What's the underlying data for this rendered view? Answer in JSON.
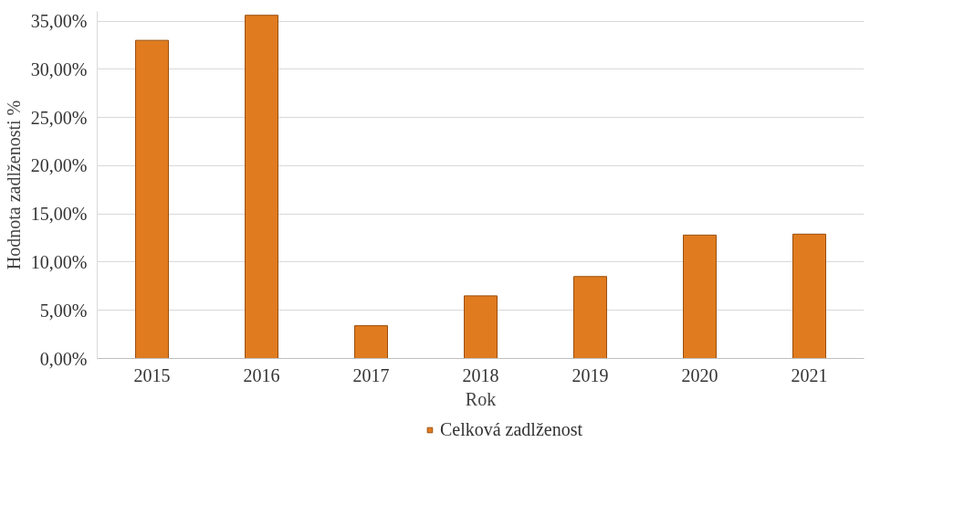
{
  "chart_data": {
    "type": "bar",
    "xlabel": "Rok",
    "ylabel": "Hodnota zadlženosti %",
    "categories": [
      "2015",
      "2016",
      "2017",
      "2018",
      "2019",
      "2020",
      "2021"
    ],
    "series": [
      {
        "name": "Celková zadlženost",
        "color": "#e07b1f",
        "values": [
          33.0,
          35.6,
          3.4,
          6.5,
          8.5,
          12.8,
          12.9
        ]
      }
    ],
    "ylim": [
      0,
      36
    ],
    "yticks": [
      {
        "value": 0,
        "label": "0,00%"
      },
      {
        "value": 5,
        "label": "5,00%"
      },
      {
        "value": 10,
        "label": "10,00%"
      },
      {
        "value": 15,
        "label": "15,00%"
      },
      {
        "value": 20,
        "label": "20,00%"
      },
      {
        "value": 25,
        "label": "25,00%"
      },
      {
        "value": 30,
        "label": "30,00%"
      },
      {
        "value": 35,
        "label": "35,00%"
      }
    ],
    "grid": "y",
    "legend": "bottom"
  }
}
